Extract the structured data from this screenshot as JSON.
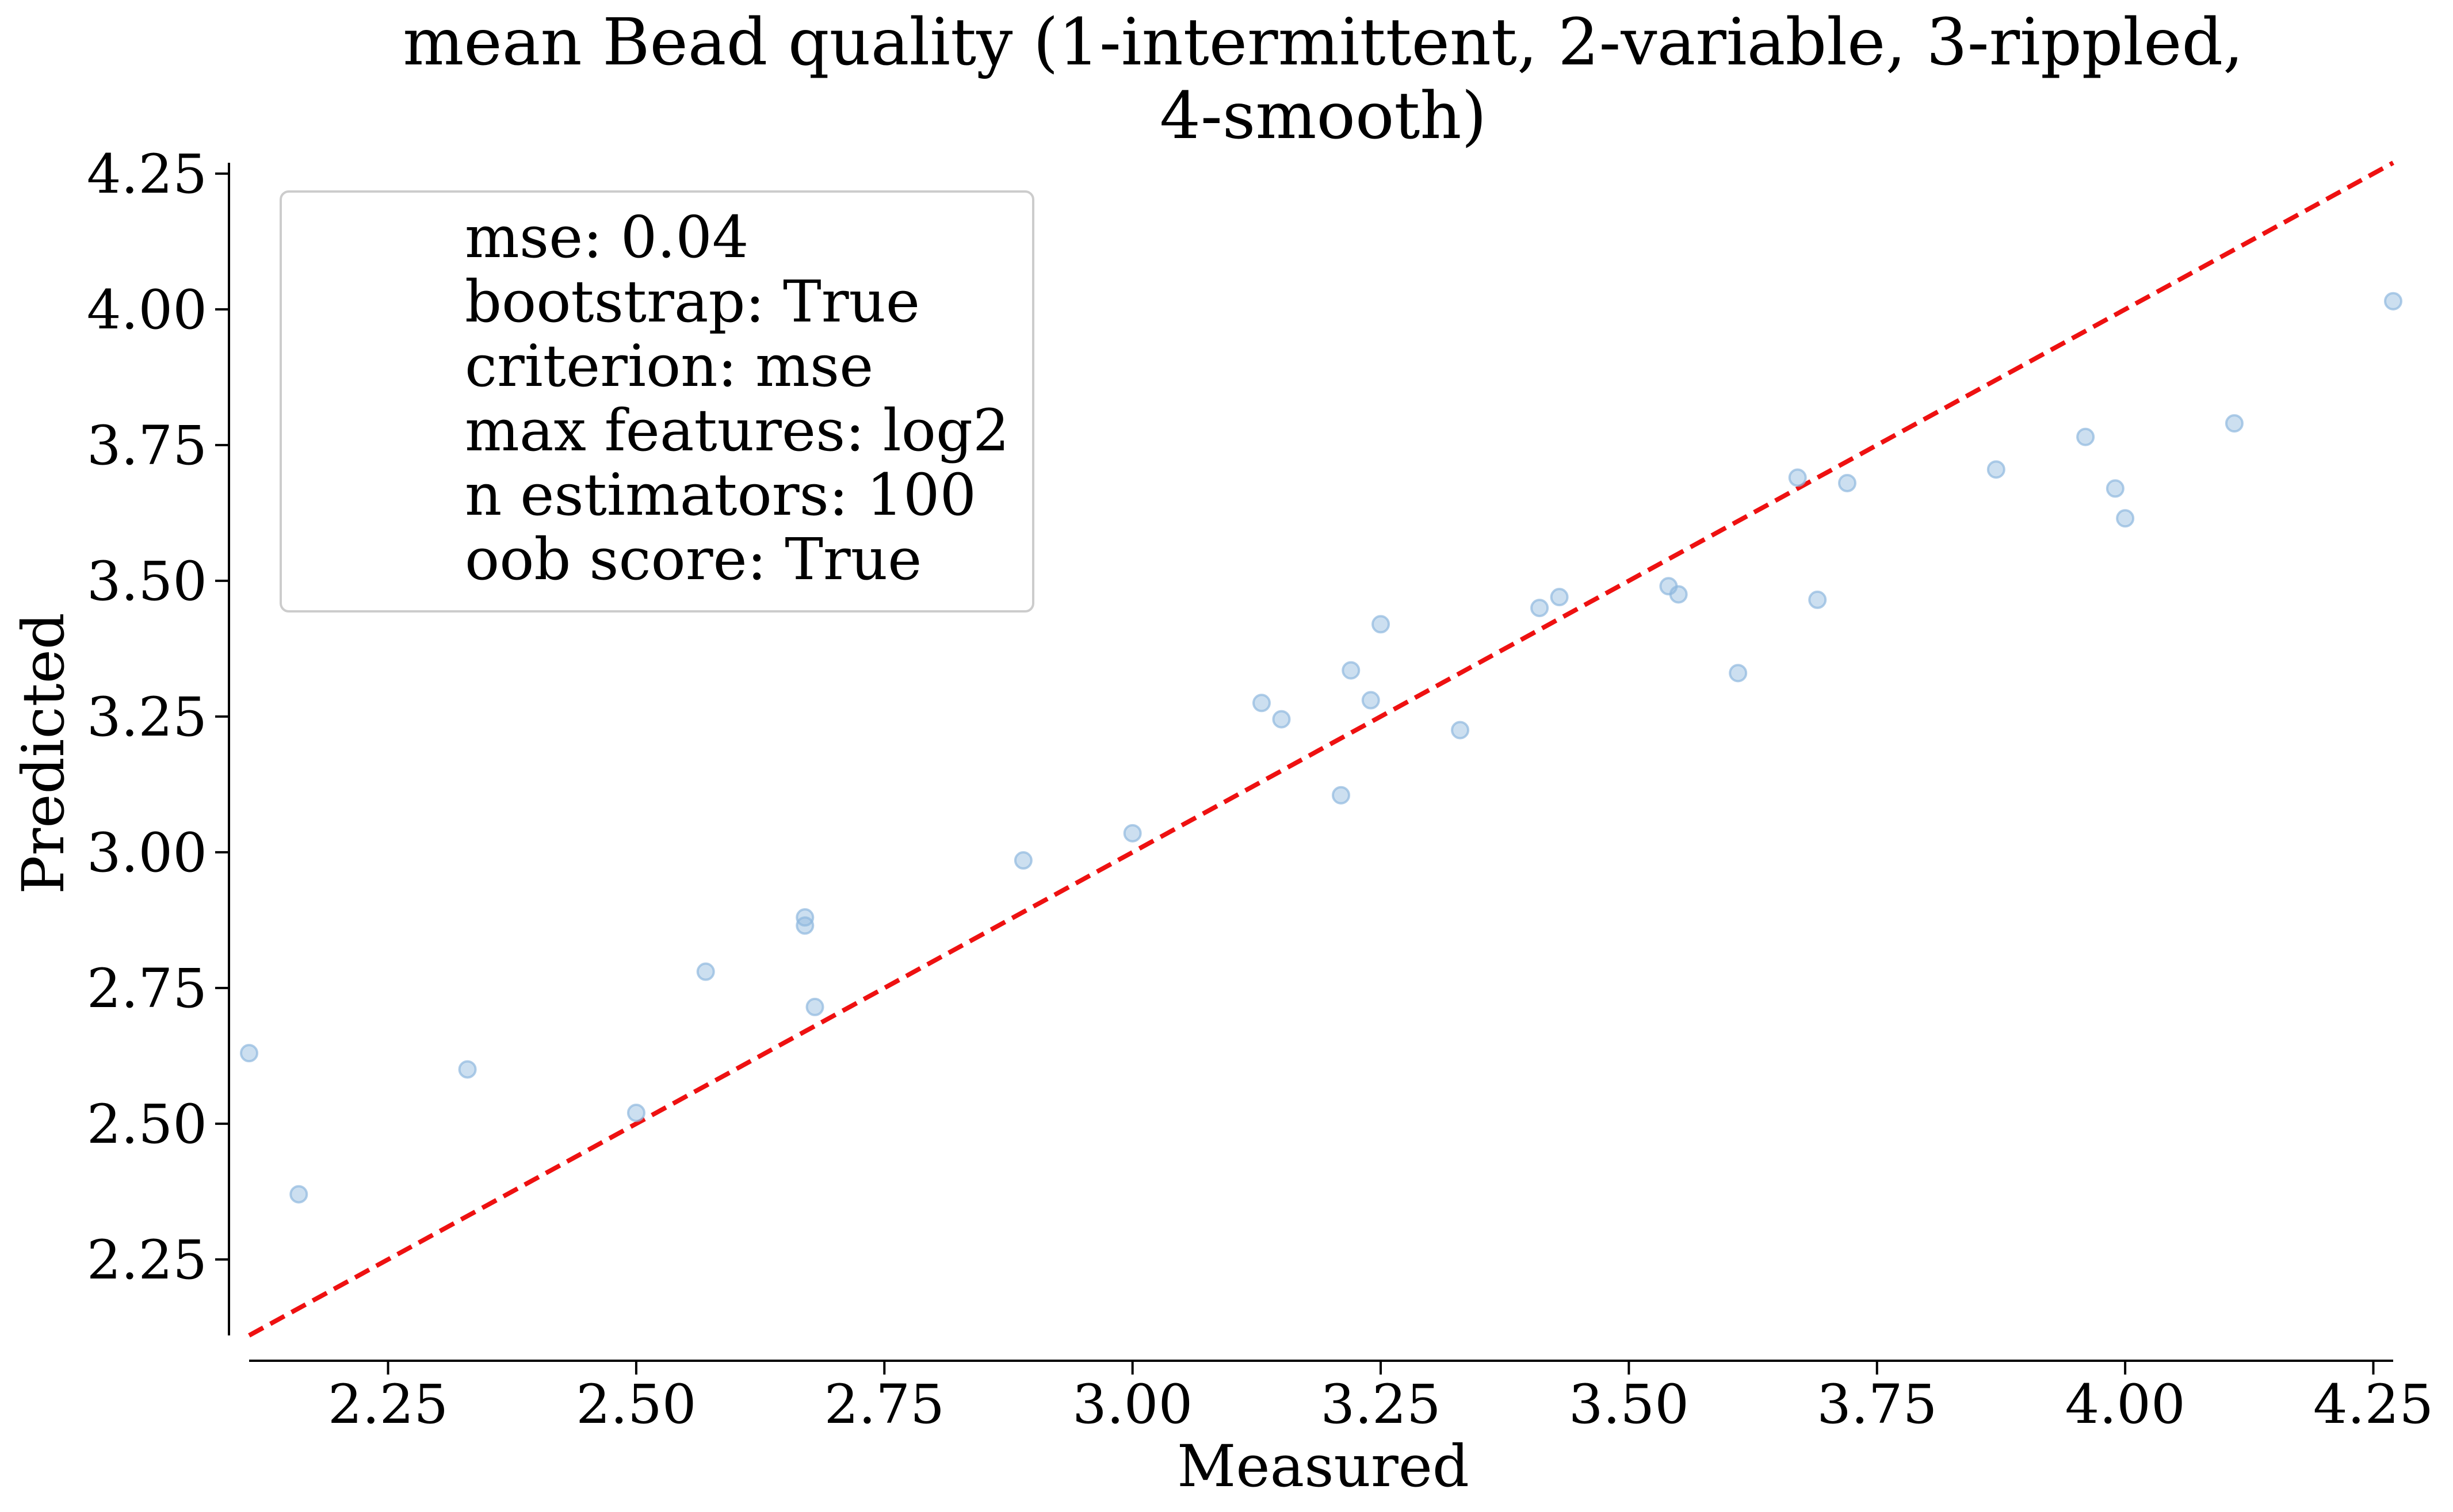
{
  "chart_data": {
    "type": "scatter",
    "title": [
      "mean Bead quality (1-intermittent, 2-variable, 3-rippled,",
      "4-smooth)"
    ],
    "xlabel": "Measured",
    "ylabel": "Predicted",
    "xlim": [
      2.11,
      4.27
    ],
    "ylim": [
      2.11,
      4.27
    ],
    "x_ticks": [
      "2.25",
      "2.50",
      "2.75",
      "3.00",
      "3.25",
      "3.50",
      "3.75",
      "4.00",
      "4.25"
    ],
    "y_ticks": [
      "2.25",
      "2.50",
      "2.75",
      "3.00",
      "3.25",
      "3.50",
      "3.75",
      "4.00",
      "4.25"
    ],
    "grid": false,
    "legend_position": "top-left",
    "legend_entries": [
      "mse: 0.04",
      "bootstrap: True",
      "criterion: mse",
      "max features: log2",
      "n estimators: 100",
      "oob score: True"
    ],
    "points": [
      {
        "x": 2.11,
        "y": 2.63
      },
      {
        "x": 2.16,
        "y": 2.37
      },
      {
        "x": 2.33,
        "y": 2.6
      },
      {
        "x": 2.5,
        "y": 2.52
      },
      {
        "x": 2.57,
        "y": 2.78
      },
      {
        "x": 2.67,
        "y": 2.88
      },
      {
        "x": 2.67,
        "y": 2.865
      },
      {
        "x": 2.68,
        "y": 2.715
      },
      {
        "x": 2.89,
        "y": 2.985
      },
      {
        "x": 3.0,
        "y": 3.035
      },
      {
        "x": 3.13,
        "y": 3.275
      },
      {
        "x": 3.15,
        "y": 3.245
      },
      {
        "x": 3.21,
        "y": 3.105
      },
      {
        "x": 3.22,
        "y": 3.335
      },
      {
        "x": 3.24,
        "y": 3.28
      },
      {
        "x": 3.25,
        "y": 3.42
      },
      {
        "x": 3.33,
        "y": 3.225
      },
      {
        "x": 3.41,
        "y": 3.45
      },
      {
        "x": 3.43,
        "y": 3.47
      },
      {
        "x": 3.54,
        "y": 3.49
      },
      {
        "x": 3.55,
        "y": 3.475
      },
      {
        "x": 3.61,
        "y": 3.33
      },
      {
        "x": 3.67,
        "y": 3.69
      },
      {
        "x": 3.69,
        "y": 3.465
      },
      {
        "x": 3.72,
        "y": 3.68
      },
      {
        "x": 3.87,
        "y": 3.705
      },
      {
        "x": 3.96,
        "y": 3.765
      },
      {
        "x": 3.99,
        "y": 3.67
      },
      {
        "x": 4.0,
        "y": 3.615
      },
      {
        "x": 4.11,
        "y": 3.79
      },
      {
        "x": 4.27,
        "y": 4.015
      }
    ],
    "reference_line": {
      "style": "dashed",
      "from": [
        2.11,
        2.11
      ],
      "to": [
        4.27,
        4.27
      ]
    },
    "colors": {
      "points": "#8fb8de",
      "reference_line": "#ee1111",
      "axes": "#000000"
    }
  }
}
